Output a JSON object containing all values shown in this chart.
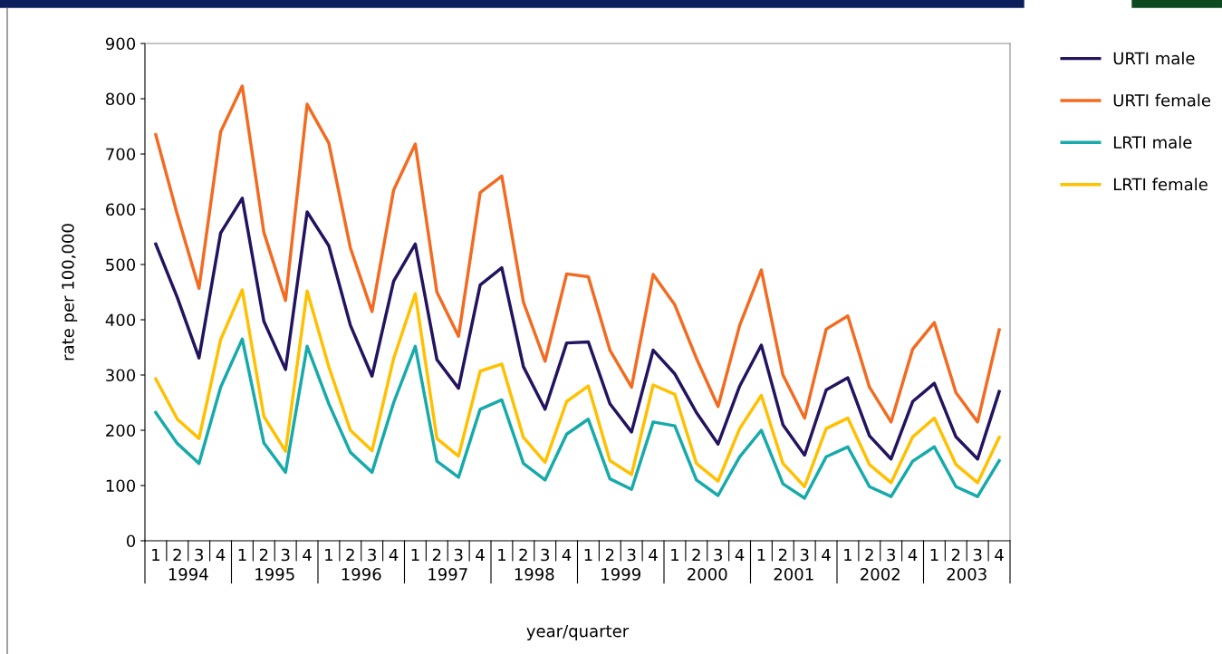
{
  "chart_data": {
    "type": "line",
    "xlabel": "year/quarter",
    "ylabel": "rate per 100,000",
    "categories": [
      "1",
      "2",
      "3",
      "4",
      "1",
      "2",
      "3",
      "4",
      "1",
      "2",
      "3",
      "4",
      "1",
      "2",
      "3",
      "4",
      "1",
      "2",
      "3",
      "4",
      "1",
      "2",
      "3",
      "4",
      "1",
      "2",
      "3",
      "4",
      "1",
      "2",
      "3",
      "4",
      "1",
      "2",
      "3",
      "4",
      "1",
      "2",
      "3",
      "4"
    ],
    "annotations": [
      "1994",
      "1995",
      "1996",
      "1997",
      "1998",
      "1999",
      "2000",
      "2001",
      "2002",
      "2003"
    ],
    "series": [
      {
        "name": "URTI male",
        "color": "#24135f",
        "values": [
          537,
          440,
          331,
          557,
          620,
          397,
          310,
          595,
          534,
          390,
          298,
          470,
          537,
          328,
          276,
          463,
          494,
          315,
          238,
          358,
          360,
          248,
          197,
          345,
          302,
          232,
          175,
          280,
          354,
          210,
          155,
          273,
          295,
          190,
          148,
          252,
          285,
          188,
          148,
          270
        ]
      },
      {
        "name": "URTI female",
        "color": "#f26b21",
        "values": [
          735,
          590,
          457,
          740,
          823,
          558,
          435,
          790,
          720,
          530,
          415,
          635,
          718,
          450,
          370,
          630,
          660,
          432,
          325,
          483,
          478,
          345,
          278,
          482,
          427,
          330,
          243,
          390,
          490,
          300,
          222,
          383,
          407,
          278,
          215,
          347,
          395,
          268,
          215,
          382
        ]
      },
      {
        "name": "LRTI male",
        "color": "#17aaaa",
        "values": [
          232,
          176,
          140,
          278,
          365,
          177,
          124,
          352,
          248,
          160,
          124,
          250,
          352,
          144,
          115,
          238,
          255,
          140,
          110,
          193,
          220,
          112,
          93,
          215,
          208,
          110,
          82,
          152,
          200,
          103,
          77,
          152,
          170,
          98,
          80,
          144,
          170,
          98,
          80,
          145
        ]
      },
      {
        "name": "LRTI female",
        "color": "#ffc000",
        "values": [
          293,
          220,
          185,
          364,
          454,
          225,
          162,
          452,
          315,
          200,
          163,
          330,
          447,
          185,
          153,
          307,
          320,
          187,
          142,
          252,
          280,
          145,
          120,
          282,
          265,
          140,
          108,
          203,
          263,
          140,
          98,
          203,
          222,
          138,
          105,
          188,
          222,
          138,
          105,
          187
        ]
      }
    ],
    "ylim": [
      0,
      900
    ],
    "yticks": [
      0,
      100,
      200,
      300,
      400,
      500,
      600,
      700,
      800,
      900
    ],
    "grid": false,
    "legend": "right",
    "marker": "none",
    "line_style": "solid"
  }
}
